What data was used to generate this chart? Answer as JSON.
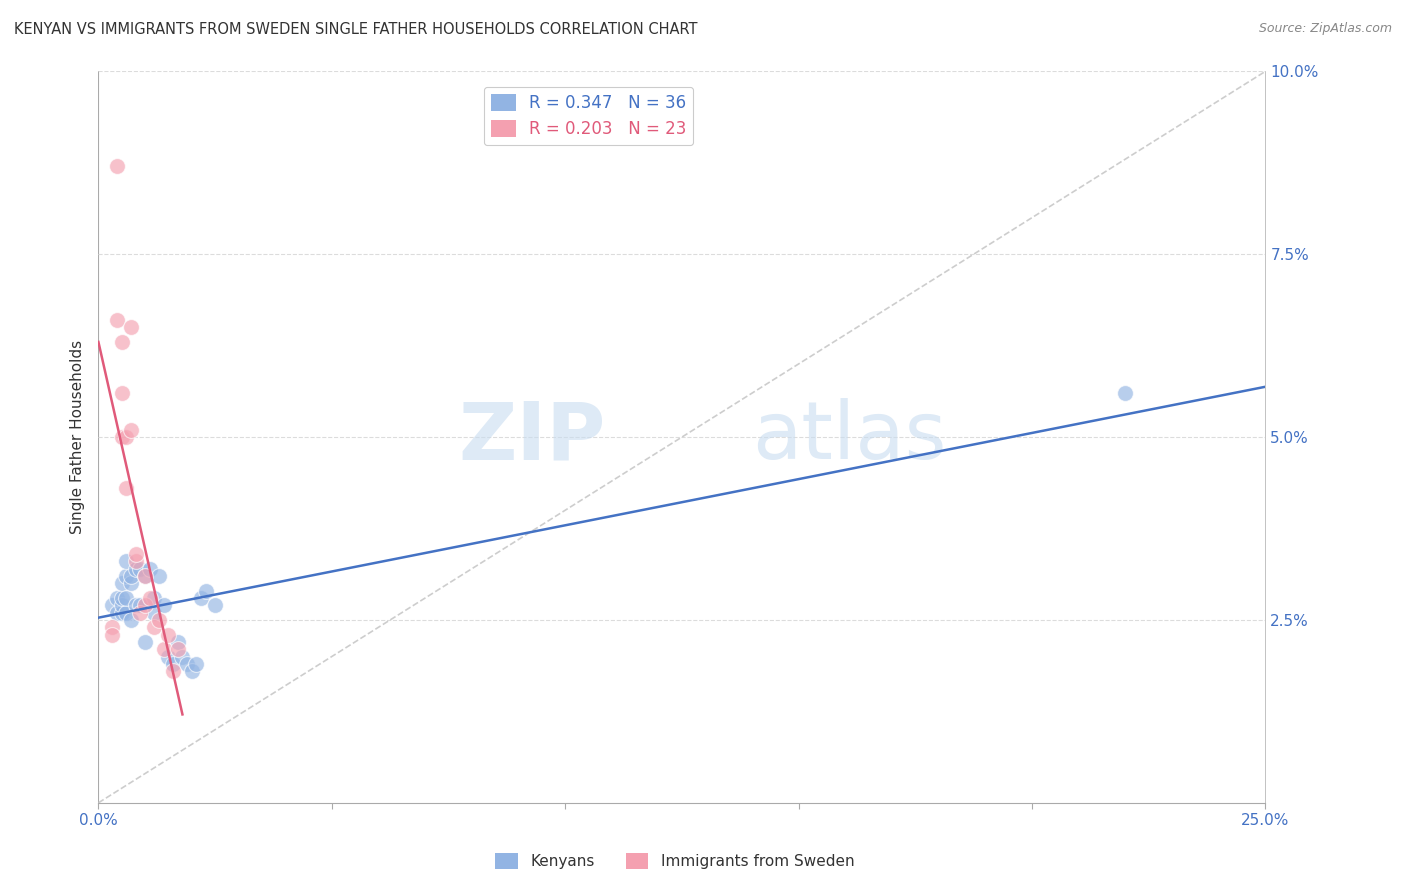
{
  "title": "KENYAN VS IMMIGRANTS FROM SWEDEN SINGLE FATHER HOUSEHOLDS CORRELATION CHART",
  "source": "Source: ZipAtlas.com",
  "ylabel": "Single Father Households",
  "xlim": [
    0.0,
    0.25
  ],
  "ylim": [
    0.0,
    0.1
  ],
  "xtick_positions": [
    0.0,
    0.05,
    0.1,
    0.15,
    0.2,
    0.25
  ],
  "xtick_labels": [
    "0.0%",
    "",
    "",
    "",
    "",
    "25.0%"
  ],
  "ytick_positions": [
    0.0,
    0.025,
    0.05,
    0.075,
    0.1
  ],
  "ytick_labels": [
    "",
    "2.5%",
    "5.0%",
    "7.5%",
    "10.0%"
  ],
  "kenyan_color": "#92B4E3",
  "sweden_color": "#F4A0B0",
  "kenyan_line_color": "#4472C4",
  "sweden_line_color": "#E05A7A",
  "diagonal_color": "#C8C8C8",
  "R_kenyan": 0.347,
  "N_kenyan": 36,
  "R_sweden": 0.203,
  "N_sweden": 23,
  "watermark_zip": "ZIP",
  "watermark_atlas": "atlas",
  "legend_label_kenyan": "Kenyans",
  "legend_label_sweden": "Immigrants from Sweden",
  "tick_color": "#4472C4",
  "kenyan_x": [
    0.003,
    0.004,
    0.004,
    0.005,
    0.005,
    0.005,
    0.005,
    0.006,
    0.006,
    0.006,
    0.006,
    0.007,
    0.007,
    0.007,
    0.008,
    0.008,
    0.009,
    0.009,
    0.01,
    0.01,
    0.011,
    0.012,
    0.012,
    0.013,
    0.014,
    0.015,
    0.016,
    0.017,
    0.018,
    0.019,
    0.02,
    0.021,
    0.022,
    0.023,
    0.025,
    0.22
  ],
  "kenyan_y": [
    0.027,
    0.026,
    0.028,
    0.026,
    0.027,
    0.028,
    0.03,
    0.031,
    0.033,
    0.026,
    0.028,
    0.025,
    0.03,
    0.031,
    0.027,
    0.032,
    0.032,
    0.027,
    0.031,
    0.022,
    0.032,
    0.026,
    0.028,
    0.031,
    0.027,
    0.02,
    0.019,
    0.022,
    0.02,
    0.019,
    0.018,
    0.019,
    0.028,
    0.029,
    0.027,
    0.056
  ],
  "sweden_x": [
    0.003,
    0.003,
    0.004,
    0.004,
    0.005,
    0.005,
    0.005,
    0.006,
    0.006,
    0.007,
    0.007,
    0.008,
    0.008,
    0.009,
    0.01,
    0.01,
    0.011,
    0.012,
    0.013,
    0.014,
    0.015,
    0.016,
    0.017
  ],
  "sweden_y": [
    0.024,
    0.023,
    0.087,
    0.066,
    0.063,
    0.056,
    0.05,
    0.05,
    0.043,
    0.051,
    0.065,
    0.033,
    0.034,
    0.026,
    0.027,
    0.031,
    0.028,
    0.024,
    0.025,
    0.021,
    0.023,
    0.018,
    0.021
  ]
}
